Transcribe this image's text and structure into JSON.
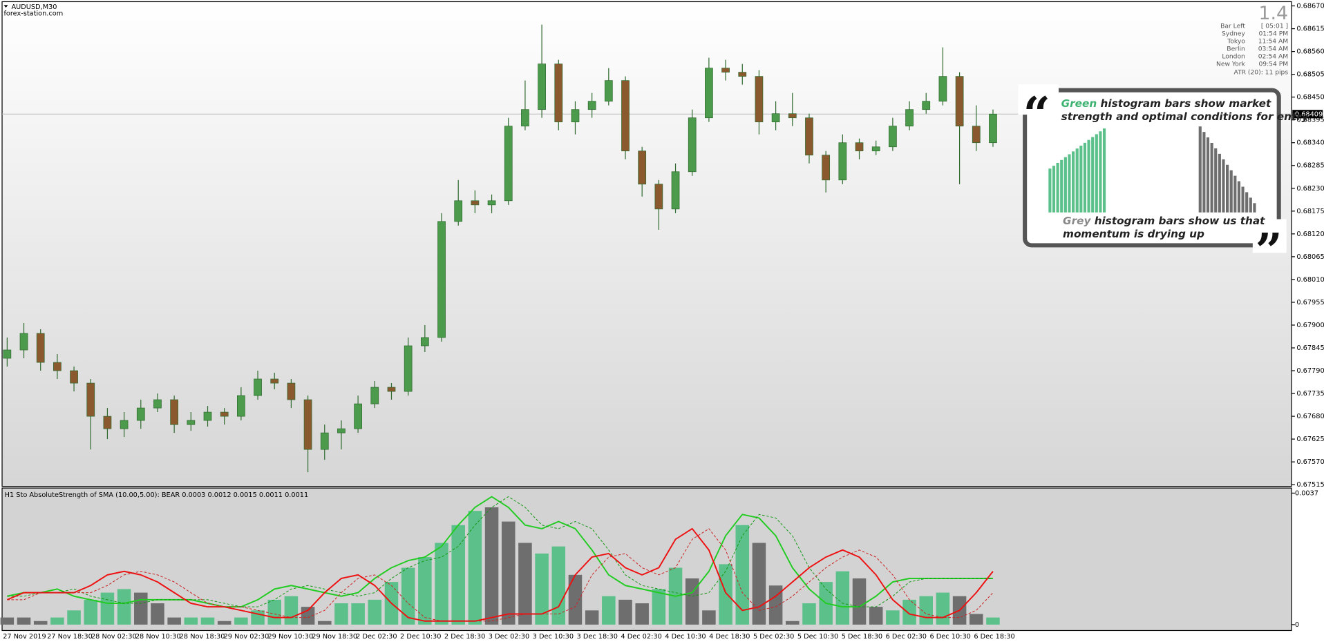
{
  "chart_data": [
    {
      "type": "candlestick",
      "title": "AUDUSD,M30",
      "subtitle": "forex-station.com",
      "up_color": "#4c9a4c",
      "down_color": "#8a5a2e",
      "wick_color": "#2f6b2f",
      "open": [
        0.6782,
        0.6784,
        0.6788,
        0.6781,
        0.6779,
        0.6776,
        0.6768,
        0.6765,
        0.6767,
        0.677,
        0.6772,
        0.6766,
        0.6767,
        0.6769,
        0.6768,
        0.6773,
        0.6777,
        0.6776,
        0.6772,
        0.676,
        0.6764,
        0.6765,
        0.6771,
        0.6775,
        0.6774,
        0.6785,
        0.6787,
        0.6815,
        0.682,
        0.6819,
        0.682,
        0.6838,
        0.6842,
        0.6853,
        0.6839,
        0.6842,
        0.6844,
        0.6849,
        0.6832,
        0.6824,
        0.6818,
        0.6827,
        0.684,
        0.6852,
        0.6851,
        0.685,
        0.6839,
        0.6841,
        0.684,
        0.6831,
        0.6825,
        0.6834,
        0.6832,
        0.6833,
        0.6838,
        0.6842,
        0.6844,
        0.685,
        0.6838,
        0.6834
      ],
      "high": [
        0.6787,
        0.67905,
        0.6789,
        0.6783,
        0.678,
        0.6777,
        0.677,
        0.6769,
        0.6772,
        0.67735,
        0.6773,
        0.6769,
        0.67705,
        0.677,
        0.6775,
        0.6779,
        0.67785,
        0.6777,
        0.6773,
        0.6766,
        0.6767,
        0.6773,
        0.67765,
        0.6776,
        0.6787,
        0.679,
        0.6817,
        0.6825,
        0.68225,
        0.68215,
        0.684,
        0.6849,
        0.68625,
        0.6854,
        0.6844,
        0.6846,
        0.6852,
        0.685,
        0.6833,
        0.6825,
        0.6829,
        0.6842,
        0.68545,
        0.6854,
        0.6853,
        0.68515,
        0.6844,
        0.6846,
        0.6841,
        0.6832,
        0.6836,
        0.6835,
        0.68345,
        0.684,
        0.6844,
        0.6846,
        0.6857,
        0.6851,
        0.6843,
        0.6842
      ],
      "low": [
        0.678,
        0.6782,
        0.6779,
        0.6777,
        0.6774,
        0.676,
        0.67625,
        0.6763,
        0.6765,
        0.6769,
        0.6764,
        0.67645,
        0.67655,
        0.6766,
        0.6767,
        0.6772,
        0.67745,
        0.677,
        0.67545,
        0.67575,
        0.676,
        0.6764,
        0.677,
        0.6772,
        0.6773,
        0.67835,
        0.6786,
        0.6814,
        0.6817,
        0.6817,
        0.6819,
        0.6837,
        0.684,
        0.6837,
        0.6836,
        0.684,
        0.6843,
        0.683,
        0.6821,
        0.6813,
        0.6817,
        0.6826,
        0.6839,
        0.6849,
        0.6848,
        0.6836,
        0.6837,
        0.6838,
        0.6829,
        0.6822,
        0.6824,
        0.683,
        0.6831,
        0.6832,
        0.6837,
        0.6841,
        0.6843,
        0.6824,
        0.6832,
        0.6833
      ],
      "close": [
        0.6784,
        0.6788,
        0.6781,
        0.6779,
        0.6776,
        0.6768,
        0.6765,
        0.6767,
        0.677,
        0.6772,
        0.6766,
        0.6767,
        0.6769,
        0.6768,
        0.6773,
        0.6777,
        0.6776,
        0.6772,
        0.676,
        0.6764,
        0.6765,
        0.6771,
        0.6775,
        0.6774,
        0.6785,
        0.6787,
        0.6815,
        0.682,
        0.6819,
        0.682,
        0.6838,
        0.6842,
        0.6853,
        0.6839,
        0.6842,
        0.6844,
        0.6849,
        0.6832,
        0.6824,
        0.6818,
        0.6827,
        0.684,
        0.6852,
        0.6851,
        0.685,
        0.6839,
        0.6841,
        0.684,
        0.6831,
        0.6825,
        0.6834,
        0.6832,
        0.6833,
        0.6838,
        0.6842,
        0.6844,
        0.685,
        0.6838,
        0.6834,
        0.68409
      ],
      "ylim": [
        0.67515,
        0.6867
      ],
      "yticks": [
        {
          "value": 0.6867,
          "label": "0.68670"
        },
        0.68615,
        {
          "value": 0.6856,
          "label": "0.68560"
        },
        0.68505,
        {
          "value": 0.6845,
          "label": "0.68450"
        },
        0.68395,
        {
          "value": 0.6834,
          "label": "0.68340"
        },
        0.68285,
        {
          "value": 0.6823,
          "label": "0.68230"
        },
        0.68175,
        {
          "value": 0.6812,
          "label": "0.68120"
        },
        0.68065,
        {
          "value": 0.6801,
          "label": "0.68010"
        },
        0.67955,
        {
          "value": 0.679,
          "label": "0.67900"
        },
        0.67845,
        {
          "value": 0.6779,
          "label": "0.67790"
        },
        0.67735,
        {
          "value": 0.6768,
          "label": "0.67680"
        },
        0.67625,
        {
          "value": 0.6757,
          "label": "0.67570"
        },
        0.67515
      ],
      "time_labels": [
        "27 Nov 2019",
        "27 Nov 18:30",
        "28 Nov 02:30",
        "28 Nov 10:30",
        "28 Nov 18:30",
        "29 Nov 02:30",
        "29 Nov 10:30",
        "29 Nov 18:30",
        "2 Dec 02:30",
        "2 Dec 10:30",
        "2 Dec 18:30",
        "3 Dec 02:30",
        "3 Dec 10:30",
        "3 Dec 18:30",
        "4 Dec 02:30",
        "4 Dec 10:30",
        "4 Dec 18:30",
        "5 Dec 02:30",
        "5 Dec 10:30",
        "5 Dec 18:30",
        "6 Dec 02:30",
        "6 Dec 10:30",
        "6 Dec 18:30"
      ]
    },
    {
      "type": "combo",
      "title": "H1 Sto AbsoluteStrength of SMA (10.00,5.00): BEAR 0.0003 0.0012 0.0015 0.0011 0.0011",
      "ylim": [
        0,
        0.0037
      ],
      "yticks": [
        0.0037,
        0
      ],
      "series": [
        {
          "kind": "bar",
          "color": "#5cc08a",
          "values": [
            null,
            null,
            null,
            0.0002,
            0.0004,
            0.0007,
            0.0009,
            0.001,
            null,
            null,
            null,
            0.0002,
            0.0002,
            null,
            0.0002,
            0.0004,
            0.0007,
            0.0008,
            null,
            null,
            0.0006,
            0.0006,
            0.0007,
            0.0012,
            0.0016,
            0.0019,
            0.0023,
            0.0028,
            0.0032,
            null,
            null,
            null,
            0.002,
            0.0022,
            null,
            null,
            0.0008,
            null,
            null,
            0.001,
            0.0016,
            null,
            null,
            0.0017,
            0.0028,
            null,
            null,
            null,
            0.0006,
            0.0012,
            0.0015,
            null,
            null,
            0.0004,
            0.0007,
            0.0008,
            0.0009,
            null,
            null,
            0.0002
          ]
        },
        {
          "kind": "bar",
          "color": "#6e6e6e",
          "values": [
            0.0002,
            0.0002,
            0.0001,
            null,
            null,
            null,
            null,
            null,
            0.0009,
            0.0006,
            0.0002,
            null,
            null,
            0.0001,
            null,
            null,
            null,
            null,
            0.0005,
            0.0001,
            null,
            null,
            null,
            null,
            null,
            null,
            null,
            null,
            null,
            0.0033,
            0.0029,
            0.0023,
            null,
            null,
            0.0014,
            0.0004,
            null,
            0.0007,
            0.0006,
            null,
            null,
            0.0013,
            0.0004,
            null,
            null,
            0.0023,
            0.0011,
            0.0001,
            null,
            null,
            null,
            0.0013,
            0.0005,
            null,
            null,
            null,
            null,
            0.0008,
            0.0003,
            null
          ]
        },
        {
          "kind": "line",
          "color": "#22cc22",
          "values": [
            0.0008,
            0.0009,
            0.0009,
            0.001,
            0.0008,
            0.0007,
            0.0006,
            0.0006,
            0.0007,
            0.0007,
            0.0007,
            0.0007,
            0.0006,
            0.0005,
            0.0005,
            0.0007,
            0.001,
            0.0011,
            0.001,
            0.0009,
            0.0008,
            0.0009,
            0.0013,
            0.0016,
            0.0018,
            0.0019,
            0.0022,
            0.0028,
            0.0033,
            0.0036,
            0.0033,
            0.0028,
            0.0027,
            0.0029,
            0.0027,
            0.0021,
            0.0014,
            0.0011,
            0.001,
            0.0009,
            0.0008,
            0.0009,
            0.0015,
            0.0025,
            0.0031,
            0.003,
            0.0025,
            0.0016,
            0.001,
            0.0006,
            0.0005,
            0.0005,
            0.0008,
            0.0012,
            0.0013,
            0.0013,
            0.0013,
            0.0013,
            0.0013,
            0.0013
          ]
        },
        {
          "kind": "dashed",
          "color": "#119911",
          "values": [
            0.0008,
            0.0008,
            0.0009,
            0.0009,
            0.001,
            0.0008,
            0.0007,
            0.0006,
            0.0006,
            0.0007,
            0.0007,
            0.0007,
            0.0007,
            0.0006,
            0.0005,
            0.0005,
            0.0007,
            0.001,
            0.0011,
            0.001,
            0.0009,
            0.0008,
            0.0009,
            0.0013,
            0.0016,
            0.0018,
            0.0019,
            0.0022,
            0.0028,
            0.0033,
            0.0036,
            0.0033,
            0.0028,
            0.0027,
            0.0029,
            0.0027,
            0.0021,
            0.0014,
            0.0011,
            0.001,
            0.0009,
            0.0008,
            0.0009,
            0.0015,
            0.0025,
            0.0031,
            0.003,
            0.0025,
            0.0016,
            0.001,
            0.0006,
            0.0005,
            0.0005,
            0.0008,
            0.0012,
            0.0013,
            0.0013,
            0.0013,
            0.0013,
            0.0013
          ]
        },
        {
          "kind": "line",
          "color": "#ee1111",
          "values": [
            0.0007,
            0.0009,
            0.0009,
            0.0009,
            0.0009,
            0.0011,
            0.0014,
            0.0015,
            0.0014,
            0.0012,
            0.0009,
            0.0006,
            0.0005,
            0.0005,
            0.0004,
            0.0003,
            0.0002,
            0.0002,
            0.0004,
            0.0009,
            0.0013,
            0.0014,
            0.0011,
            0.0006,
            0.0002,
            0.0001,
            0.0001,
            0.0001,
            0.0001,
            0.0002,
            0.0003,
            0.0003,
            0.0003,
            0.0005,
            0.0014,
            0.0019,
            0.002,
            0.0016,
            0.0014,
            0.0016,
            0.0024,
            0.0027,
            0.0021,
            0.0009,
            0.0004,
            0.0005,
            0.0008,
            0.0012,
            0.0016,
            0.0019,
            0.0021,
            0.0019,
            0.0014,
            0.0007,
            0.0003,
            0.0002,
            0.0002,
            0.0004,
            0.0009,
            0.0015
          ]
        },
        {
          "kind": "dashed",
          "color": "#cc2222",
          "values": [
            0.0007,
            0.0007,
            0.0009,
            0.0009,
            0.0009,
            0.0009,
            0.0011,
            0.0014,
            0.0015,
            0.0014,
            0.0012,
            0.0009,
            0.0006,
            0.0005,
            0.0005,
            0.0004,
            0.0003,
            0.0002,
            0.0002,
            0.0004,
            0.0009,
            0.0013,
            0.0014,
            0.0011,
            0.0006,
            0.0002,
            0.0001,
            0.0001,
            0.0001,
            0.0001,
            0.0002,
            0.0003,
            0.0003,
            0.0003,
            0.0005,
            0.0014,
            0.0019,
            0.002,
            0.0016,
            0.0014,
            0.0016,
            0.0024,
            0.0027,
            0.0021,
            0.0009,
            0.0004,
            0.0005,
            0.0008,
            0.0012,
            0.0016,
            0.0019,
            0.0021,
            0.0019,
            0.0014,
            0.0007,
            0.0003,
            0.0002,
            0.0002,
            0.0004,
            0.0009
          ]
        }
      ]
    }
  ],
  "info_panel": {
    "spread": "1.4",
    "rows": [
      [
        "Bar Left",
        "[ 05:01 ]"
      ],
      [
        "Sydney",
        "01:54 PM"
      ],
      [
        "Tokyo",
        "11:54 AM"
      ],
      [
        "Berlin",
        "03:54 AM"
      ],
      [
        "London",
        "02:54 AM"
      ],
      [
        "New York",
        "09:54 PM"
      ]
    ],
    "atr": "ATR (20): 11 pips"
  },
  "callout": {
    "open_quote": "“",
    "close_quote": "”",
    "green_word": "Green",
    "green_rest": "histogram bars show market",
    "green_line2": "strength and optimal conditions for entry",
    "grey_word": "Grey",
    "grey_rest": "histogram bars show us that",
    "grey_line2": "momentum is drying up"
  }
}
